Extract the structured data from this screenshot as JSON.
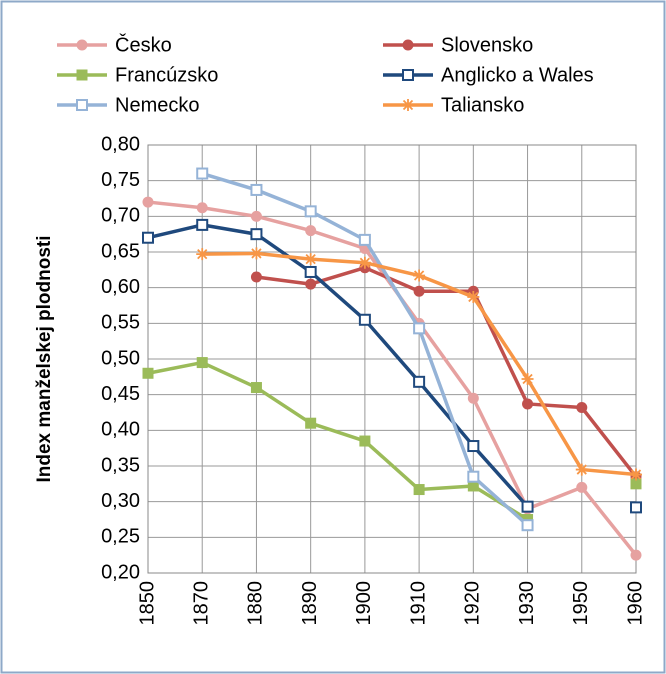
{
  "chart_data": {
    "type": "line",
    "ylabel": "Index manželskej plodnosti",
    "categories": [
      "1850",
      "1870",
      "1880",
      "1890",
      "1900",
      "1910",
      "1920",
      "1930",
      "1950",
      "1960"
    ],
    "series": [
      {
        "name": "Česko",
        "color": "#e6a1a0",
        "marker": "circle",
        "values": [
          0.72,
          0.712,
          0.7,
          0.68,
          0.655,
          0.55,
          0.445,
          0.29,
          0.32,
          0.225
        ]
      },
      {
        "name": "Slovensko",
        "color": "#c0504d",
        "marker": "circle",
        "values": [
          null,
          null,
          0.615,
          0.605,
          0.628,
          0.595,
          0.595,
          0.437,
          0.432,
          0.335
        ]
      },
      {
        "name": "Francúzsko",
        "color": "#9bbb59",
        "marker": "square",
        "values": [
          0.48,
          0.495,
          0.46,
          0.41,
          0.385,
          0.317,
          0.322,
          0.275,
          null,
          0.325
        ]
      },
      {
        "name": "Anglicko a Wales",
        "color": "#1f497d",
        "marker": "open-square",
        "values": [
          0.67,
          0.688,
          0.675,
          0.622,
          0.555,
          0.468,
          0.378,
          0.293,
          null,
          0.292
        ]
      },
      {
        "name": "Nemecko",
        "color": "#95b3d7",
        "marker": "open-square",
        "values": [
          null,
          0.76,
          0.737,
          0.707,
          0.667,
          0.543,
          0.335,
          0.267,
          null,
          null
        ]
      },
      {
        "name": "Taliansko",
        "color": "#f79646",
        "marker": "star",
        "values": [
          null,
          0.647,
          0.648,
          0.64,
          0.635,
          0.617,
          0.587,
          0.472,
          0.345,
          0.338
        ]
      }
    ],
    "ylim": [
      0.2,
      0.8
    ],
    "yticks": [
      {
        "value": 0.2,
        "label": "0,20"
      },
      {
        "value": 0.25,
        "label": "0,25"
      },
      {
        "value": 0.3,
        "label": "0,30"
      },
      {
        "value": 0.35,
        "label": "0,35"
      },
      {
        "value": 0.4,
        "label": "0,40"
      },
      {
        "value": 0.45,
        "label": "0,45"
      },
      {
        "value": 0.5,
        "label": "0,50"
      },
      {
        "value": 0.55,
        "label": "0,55"
      },
      {
        "value": 0.6,
        "label": "0,60"
      },
      {
        "value": 0.65,
        "label": "0,65"
      },
      {
        "value": 0.7,
        "label": "0,70"
      },
      {
        "value": 0.75,
        "label": "0,75"
      },
      {
        "value": 0.8,
        "label": "0,80"
      }
    ],
    "grid": true
  }
}
